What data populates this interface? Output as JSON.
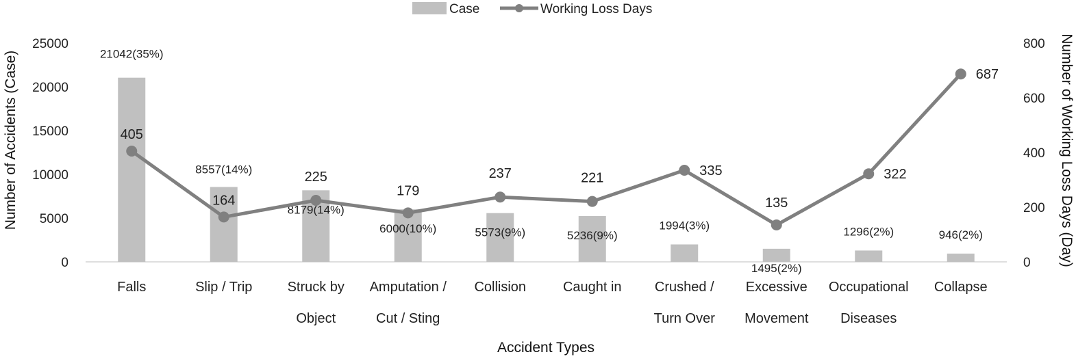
{
  "chart_data": {
    "type": "bar",
    "categories": [
      [
        "Falls"
      ],
      [
        "Slip / Trip"
      ],
      [
        "Struck by",
        "Object"
      ],
      [
        "Amputation /",
        "Cut / Sting"
      ],
      [
        "Collision"
      ],
      [
        "Caught in"
      ],
      [
        "Crushed /",
        "Turn Over"
      ],
      [
        "Excessive",
        "Movement"
      ],
      [
        "Occupational",
        "Diseases"
      ],
      [
        "Collapse"
      ]
    ],
    "series": [
      {
        "name": "Case",
        "type": "bar",
        "axis": "left",
        "color": "#c0c0c0",
        "values": [
          21042,
          8557,
          8179,
          6000,
          5573,
          5236,
          1994,
          1495,
          1296,
          946
        ],
        "labels": [
          "21042(35%)",
          "8557(14%)",
          "8179(14%)",
          "6000(10%)",
          "5573(9%)",
          "5236(9%)",
          "1994(3%)",
          "1495(2%)",
          "1296(2%)",
          "946(2%)"
        ]
      },
      {
        "name": "Working Loss Days",
        "type": "line",
        "axis": "right",
        "color": "#808080",
        "values": [
          405,
          164,
          225,
          179,
          237,
          221,
          335,
          135,
          322,
          687
        ],
        "labels": [
          "405",
          "164",
          "225",
          "179",
          "237",
          "221",
          "335",
          "135",
          "322",
          "687"
        ]
      }
    ],
    "xlabel": "Accident Types",
    "ylabel": "Number of Accidents (Case)",
    "y2label": "Number of Working Loss Days (Day)",
    "ylim": [
      0,
      25000
    ],
    "yticks": [
      "0",
      "5000",
      "10000",
      "15000",
      "20000",
      "25000"
    ],
    "y2lim": [
      0,
      800
    ],
    "y2ticks": [
      "0",
      "200",
      "400",
      "600",
      "800"
    ],
    "grid": false,
    "legend_position": "top-center"
  }
}
